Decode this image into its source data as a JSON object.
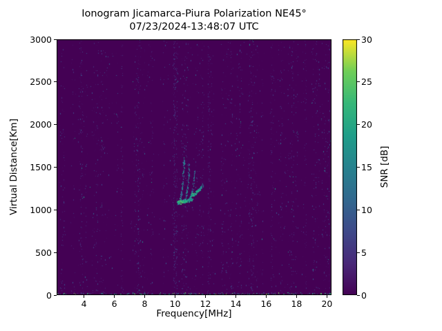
{
  "figure": {
    "title_line1": "Ionogram Jicamarca-Piura Polarization NE45°",
    "title_line2": "07/23/2024-13:48:07 UTC",
    "xlabel": "Frequency[MHz]",
    "ylabel": "Virtual Distance[Km]",
    "colorbar_label": "SNR [dB]"
  },
  "chart_data": {
    "type": "heatmap",
    "title": "Ionogram Jicamarca-Piura Polarization NE45°",
    "subtitle": "07/23/2024-13:48:07 UTC",
    "xlabel": "Frequency[MHz]",
    "ylabel": "Virtual Distance[Km]",
    "xlim": [
      2.2,
      20.3
    ],
    "ylim": [
      0,
      3000
    ],
    "xticks": [
      4,
      6,
      8,
      10,
      12,
      14,
      16,
      18,
      20
    ],
    "yticks": [
      0,
      500,
      1000,
      1500,
      2000,
      2500,
      3000
    ],
    "grid": false,
    "legend_position": "none",
    "colorbar": {
      "label": "SNR [dB]",
      "min": 0,
      "max": 30,
      "ticks": [
        0,
        5,
        10,
        15,
        20,
        25,
        30
      ]
    },
    "colormap": {
      "name": "viridis",
      "stops": [
        [
          0.0,
          "#440154"
        ],
        [
          0.125,
          "#482878"
        ],
        [
          0.25,
          "#3e4989"
        ],
        [
          0.375,
          "#31688e"
        ],
        [
          0.5,
          "#26828e"
        ],
        [
          0.625,
          "#1f9e89"
        ],
        [
          0.75,
          "#35b779"
        ],
        [
          0.875,
          "#6ece58"
        ],
        [
          1.0,
          "#fde725"
        ]
      ]
    },
    "background_value_color": "#440154",
    "echo_traces": [
      {
        "f0": 10.15,
        "f1": 10.62,
        "r0": 1085,
        "r1": 1610,
        "curve_power": 3.2,
        "points": 110,
        "snr_min": 10,
        "snr_max": 22
      },
      {
        "f0": 10.45,
        "f1": 10.97,
        "r0": 1100,
        "r1": 1545,
        "curve_power": 3.2,
        "points": 95,
        "snr_min": 10,
        "snr_max": 21
      },
      {
        "f0": 10.78,
        "f1": 11.32,
        "r0": 1115,
        "r1": 1480,
        "curve_power": 3.0,
        "points": 85,
        "snr_min": 9,
        "snr_max": 20
      },
      {
        "f0": 11.05,
        "f1": 11.85,
        "r0": 1175,
        "r1": 1295,
        "curve_power": 1.6,
        "points": 70,
        "snr_min": 13,
        "snr_max": 24
      },
      {
        "f0": 10.2,
        "f1": 11.15,
        "r0": 1085,
        "r1": 1125,
        "curve_power": 1.0,
        "points": 80,
        "snr_min": 15,
        "snr_max": 27
      }
    ],
    "noise": {
      "seed": 20240723,
      "count": 4200,
      "snr_typical_max": 9,
      "bright_fraction": 0.025,
      "bright_snr": [
        9,
        19
      ]
    },
    "rfi_columns": [
      {
        "f": 6.5,
        "count": 90,
        "snr_max": 7
      },
      {
        "f": 9.95,
        "count": 240,
        "snr_max": 9
      },
      {
        "f": 10.1,
        "count": 130,
        "snr_max": 8
      },
      {
        "f": 12.2,
        "count": 90,
        "snr_max": 7
      },
      {
        "f": 16.35,
        "count": 110,
        "snr_max": 7
      },
      {
        "f": 18.6,
        "count": 80,
        "snr_max": 6
      }
    ],
    "ground_echo": {
      "range_band": [
        0,
        25
      ],
      "count": 300,
      "snr_min": 3,
      "snr_max": 28
    }
  }
}
